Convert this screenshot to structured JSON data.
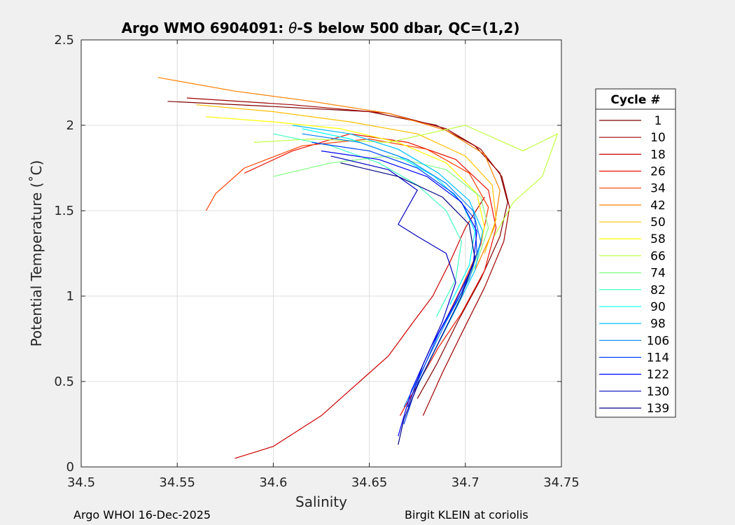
{
  "chart_data": {
    "type": "line",
    "title_prefix": "Argo WMO 6904091: ",
    "title_symbol": "θ",
    "title_suffix": "-S below 500 dbar,  QC=(1,2)",
    "xlabel": "Salinity",
    "ylabel": "Potential Temperature (˚C)",
    "xlim": [
      34.5,
      34.75
    ],
    "ylim": [
      0,
      2.5
    ],
    "xticks": [
      34.5,
      34.55,
      34.6,
      34.65,
      34.7,
      34.75
    ],
    "xtick_labels": [
      "34.5",
      "34.55",
      "34.6",
      "34.65",
      "34.7",
      "34.75"
    ],
    "yticks": [
      0,
      0.5,
      1,
      1.5,
      2,
      2.5
    ],
    "ytick_labels": [
      "0",
      "0.5",
      "1",
      "1.5",
      "2",
      "2.5"
    ],
    "grid": true,
    "legend_title": "Cycle #",
    "legend_position": "right-outside",
    "colormap": "jet",
    "series": [
      {
        "name": "1",
        "color": "#800000",
        "values": [
          [
            34.545,
            2.14
          ],
          [
            34.6,
            2.11
          ],
          [
            34.65,
            2.08
          ],
          [
            34.685,
            2.0
          ],
          [
            34.705,
            1.88
          ],
          [
            34.718,
            1.72
          ],
          [
            34.722,
            1.55
          ],
          [
            34.718,
            1.35
          ],
          [
            34.708,
            1.1
          ],
          [
            34.696,
            0.85
          ],
          [
            34.685,
            0.6
          ],
          [
            34.675,
            0.4
          ]
        ]
      },
      {
        "name": "10",
        "color": "#9e0000",
        "values": [
          [
            34.555,
            2.16
          ],
          [
            34.61,
            2.12
          ],
          [
            34.66,
            2.07
          ],
          [
            34.69,
            1.98
          ],
          [
            34.708,
            1.86
          ],
          [
            34.719,
            1.7
          ],
          [
            34.723,
            1.52
          ],
          [
            34.72,
            1.32
          ],
          [
            34.71,
            1.05
          ],
          [
            34.698,
            0.78
          ],
          [
            34.688,
            0.55
          ],
          [
            34.678,
            0.3
          ]
        ]
      },
      {
        "name": "18",
        "color": "#cc0000",
        "values": [
          [
            34.58,
            0.05
          ],
          [
            34.6,
            0.12
          ],
          [
            34.625,
            0.3
          ],
          [
            34.645,
            0.5
          ],
          [
            34.66,
            0.65
          ],
          [
            34.673,
            0.85
          ],
          [
            34.683,
            1.0
          ],
          [
            34.692,
            1.2
          ],
          [
            34.7,
            1.4
          ],
          [
            34.71,
            1.58
          ]
        ]
      },
      {
        "name": "26",
        "color": "#e81000",
        "values": [
          [
            34.585,
            1.72
          ],
          [
            34.61,
            1.85
          ],
          [
            34.64,
            1.95
          ],
          [
            34.67,
            1.9
          ],
          [
            34.695,
            1.8
          ],
          [
            34.712,
            1.62
          ],
          [
            34.716,
            1.4
          ],
          [
            34.71,
            1.15
          ],
          [
            34.698,
            0.9
          ],
          [
            34.686,
            0.7
          ],
          [
            34.676,
            0.5
          ],
          [
            34.666,
            0.3
          ]
        ]
      },
      {
        "name": "34",
        "color": "#ff4000",
        "values": [
          [
            34.565,
            1.5
          ],
          [
            34.57,
            1.6
          ],
          [
            34.585,
            1.75
          ],
          [
            34.615,
            1.88
          ],
          [
            34.65,
            1.92
          ],
          [
            34.68,
            1.86
          ],
          [
            34.702,
            1.72
          ],
          [
            34.712,
            1.52
          ],
          [
            34.708,
            1.3
          ],
          [
            34.698,
            1.05
          ],
          [
            34.688,
            0.82
          ]
        ]
      },
      {
        "name": "42",
        "color": "#ff8000",
        "values": [
          [
            34.54,
            2.28
          ],
          [
            34.58,
            2.2
          ],
          [
            34.62,
            2.14
          ],
          [
            34.66,
            2.07
          ],
          [
            34.69,
            1.97
          ],
          [
            34.71,
            1.83
          ],
          [
            34.718,
            1.62
          ],
          [
            34.715,
            1.4
          ],
          [
            34.705,
            1.15
          ]
        ]
      },
      {
        "name": "50",
        "color": "#ffc000",
        "values": [
          [
            34.56,
            2.12
          ],
          [
            34.6,
            2.08
          ],
          [
            34.64,
            2.02
          ],
          [
            34.675,
            1.95
          ],
          [
            34.7,
            1.82
          ],
          [
            34.714,
            1.65
          ],
          [
            34.716,
            1.45
          ],
          [
            34.71,
            1.25
          ]
        ]
      },
      {
        "name": "58",
        "color": "#ffff00",
        "values": [
          [
            34.565,
            2.05
          ],
          [
            34.6,
            2.02
          ],
          [
            34.635,
            1.98
          ],
          [
            34.665,
            1.9
          ],
          [
            34.69,
            1.78
          ],
          [
            34.706,
            1.6
          ],
          [
            34.71,
            1.4
          ],
          [
            34.705,
            1.2
          ]
        ]
      },
      {
        "name": "66",
        "color": "#c0ff40",
        "values": [
          [
            34.59,
            1.9
          ],
          [
            34.62,
            1.92
          ],
          [
            34.66,
            1.9
          ],
          [
            34.7,
            2.0
          ],
          [
            34.73,
            1.85
          ],
          [
            34.748,
            1.95
          ],
          [
            34.74,
            1.7
          ],
          [
            34.725,
            1.55
          ],
          [
            34.715,
            1.35
          ]
        ]
      },
      {
        "name": "74",
        "color": "#80ff80",
        "values": [
          [
            34.6,
            1.7
          ],
          [
            34.63,
            1.78
          ],
          [
            34.66,
            1.82
          ],
          [
            34.69,
            1.74
          ],
          [
            34.708,
            1.58
          ],
          [
            34.712,
            1.4
          ],
          [
            34.706,
            1.2
          ],
          [
            34.695,
            0.95
          ]
        ]
      },
      {
        "name": "82",
        "color": "#40ffc0",
        "values": [
          [
            34.6,
            1.95
          ],
          [
            34.63,
            1.88
          ],
          [
            34.655,
            1.78
          ],
          [
            34.675,
            1.65
          ],
          [
            34.69,
            1.5
          ],
          [
            34.698,
            1.32
          ],
          [
            34.695,
            1.1
          ],
          [
            34.685,
            0.88
          ]
        ]
      },
      {
        "name": "90",
        "color": "#00ffff",
        "values": [
          [
            34.615,
            1.98
          ],
          [
            34.64,
            1.92
          ],
          [
            34.665,
            1.82
          ],
          [
            34.684,
            1.7
          ],
          [
            34.698,
            1.55
          ],
          [
            34.705,
            1.38
          ],
          [
            34.702,
            1.18
          ],
          [
            34.692,
            0.95
          ]
        ]
      },
      {
        "name": "98",
        "color": "#00c0ff",
        "values": [
          [
            34.61,
            2.0
          ],
          [
            34.64,
            1.95
          ],
          [
            34.665,
            1.86
          ],
          [
            34.686,
            1.72
          ],
          [
            34.702,
            1.56
          ],
          [
            34.709,
            1.38
          ],
          [
            34.705,
            1.15
          ],
          [
            34.694,
            0.9
          ],
          [
            34.684,
            0.68
          ],
          [
            34.674,
            0.45
          ]
        ]
      },
      {
        "name": "106",
        "color": "#0080ff",
        "values": [
          [
            34.615,
            1.95
          ],
          [
            34.645,
            1.9
          ],
          [
            34.67,
            1.8
          ],
          [
            34.69,
            1.66
          ],
          [
            34.704,
            1.5
          ],
          [
            34.708,
            1.32
          ],
          [
            34.702,
            1.1
          ],
          [
            34.69,
            0.85
          ],
          [
            34.679,
            0.6
          ],
          [
            34.668,
            0.35
          ]
        ]
      },
      {
        "name": "114",
        "color": "#0040ff",
        "values": [
          [
            34.62,
            1.9
          ],
          [
            34.65,
            1.85
          ],
          [
            34.675,
            1.75
          ],
          [
            34.694,
            1.6
          ],
          [
            34.705,
            1.45
          ],
          [
            34.706,
            1.25
          ],
          [
            34.698,
            1.02
          ],
          [
            34.686,
            0.78
          ],
          [
            34.676,
            0.52
          ],
          [
            34.668,
            0.25
          ]
        ]
      },
      {
        "name": "122",
        "color": "#0000ff",
        "values": [
          [
            34.625,
            1.85
          ],
          [
            34.655,
            1.8
          ],
          [
            34.68,
            1.7
          ],
          [
            34.698,
            1.55
          ],
          [
            34.706,
            1.38
          ],
          [
            34.704,
            1.18
          ],
          [
            34.694,
            0.95
          ],
          [
            34.682,
            0.7
          ],
          [
            34.672,
            0.45
          ],
          [
            34.665,
            0.18
          ]
        ]
      },
      {
        "name": "130",
        "color": "#0000c0",
        "values": [
          [
            34.63,
            1.82
          ],
          [
            34.66,
            1.74
          ],
          [
            34.675,
            1.62
          ],
          [
            34.67,
            1.52
          ],
          [
            34.665,
            1.42
          ],
          [
            34.675,
            1.35
          ],
          [
            34.69,
            1.25
          ],
          [
            34.695,
            1.08
          ],
          [
            34.688,
            0.85
          ],
          [
            34.678,
            0.6
          ],
          [
            34.67,
            0.35
          ]
        ]
      },
      {
        "name": "139",
        "color": "#000080",
        "values": [
          [
            34.635,
            1.78
          ],
          [
            34.665,
            1.7
          ],
          [
            34.688,
            1.58
          ],
          [
            34.702,
            1.42
          ],
          [
            34.705,
            1.22
          ],
          [
            34.698,
            1.0
          ],
          [
            34.687,
            0.75
          ],
          [
            34.676,
            0.5
          ],
          [
            34.668,
            0.28
          ],
          [
            34.665,
            0.13
          ]
        ]
      }
    ]
  },
  "footer": {
    "left": "Argo WHOI 16-Dec-2025",
    "right": "Birgit KLEIN at coriolis"
  }
}
